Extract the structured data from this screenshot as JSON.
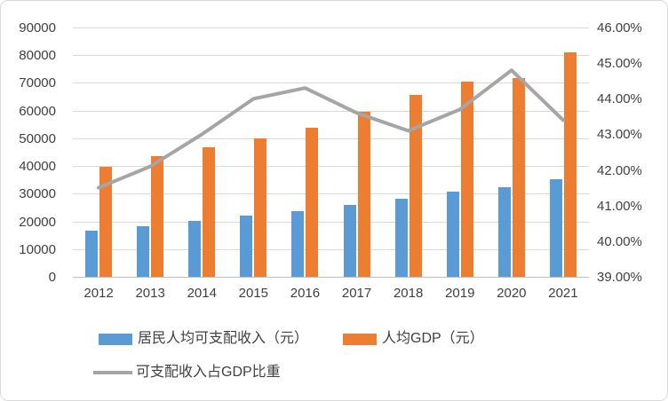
{
  "chart_data": {
    "type": "bar-line-combo",
    "categories": [
      "2012",
      "2013",
      "2014",
      "2015",
      "2016",
      "2017",
      "2018",
      "2019",
      "2020",
      "2021"
    ],
    "series": [
      {
        "name": "居民人均可支配收入（元）",
        "type": "bar",
        "color": "#5B9BD5",
        "axis": "left",
        "values": [
          16510,
          18311,
          20167,
          21966,
          23821,
          25974,
          28228,
          30733,
          32189,
          35128
        ]
      },
      {
        "name": "人均GDP（元）",
        "type": "bar",
        "color": "#ED7D31",
        "axis": "left",
        "values": [
          39771,
          43497,
          46912,
          49922,
          53783,
          59592,
          65534,
          70328,
          71828,
          80976
        ]
      },
      {
        "name": "可支配收入占GDP比重",
        "type": "line",
        "color": "#A5A5A5",
        "axis": "right",
        "values": [
          41.5,
          42.1,
          43.0,
          44.0,
          44.3,
          43.6,
          43.1,
          43.7,
          44.8,
          43.4
        ]
      }
    ],
    "left_axis": {
      "min": 0,
      "max": 90000,
      "step": 10000,
      "tick_labels": [
        "0",
        "10000",
        "20000",
        "30000",
        "40000",
        "50000",
        "60000",
        "70000",
        "80000",
        "90000"
      ]
    },
    "right_axis": {
      "min": 39,
      "max": 46,
      "step": 1,
      "tick_labels": [
        "39.00%",
        "40.00%",
        "41.00%",
        "42.00%",
        "43.00%",
        "44.00%",
        "45.00%",
        "46.00%"
      ]
    },
    "grid": true,
    "legend_position": "bottom",
    "colors": {
      "gridline": "#d9d9d9",
      "axis_line": "#bfbfbf",
      "text": "#404040"
    }
  }
}
